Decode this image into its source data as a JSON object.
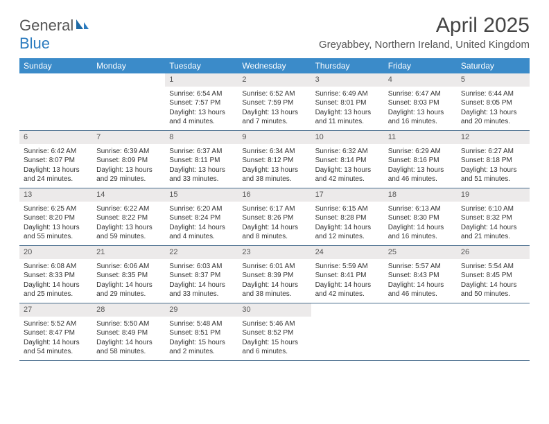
{
  "brand": {
    "part1": "General",
    "part2": "Blue"
  },
  "title": "April 2025",
  "location": "Greyabbey, Northern Ireland, United Kingdom",
  "colors": {
    "header_bg": "#3b8bc9",
    "header_text": "#ffffff",
    "daynum_bg": "#eceaea",
    "row_border": "#44698a",
    "body_text": "#333333",
    "title_text": "#444444"
  },
  "day_headers": [
    "Sunday",
    "Monday",
    "Tuesday",
    "Wednesday",
    "Thursday",
    "Friday",
    "Saturday"
  ],
  "weeks": [
    [
      {
        "empty": true
      },
      {
        "empty": true
      },
      {
        "num": "1",
        "sunrise": "Sunrise: 6:54 AM",
        "sunset": "Sunset: 7:57 PM",
        "daylight": "Daylight: 13 hours and 4 minutes."
      },
      {
        "num": "2",
        "sunrise": "Sunrise: 6:52 AM",
        "sunset": "Sunset: 7:59 PM",
        "daylight": "Daylight: 13 hours and 7 minutes."
      },
      {
        "num": "3",
        "sunrise": "Sunrise: 6:49 AM",
        "sunset": "Sunset: 8:01 PM",
        "daylight": "Daylight: 13 hours and 11 minutes."
      },
      {
        "num": "4",
        "sunrise": "Sunrise: 6:47 AM",
        "sunset": "Sunset: 8:03 PM",
        "daylight": "Daylight: 13 hours and 16 minutes."
      },
      {
        "num": "5",
        "sunrise": "Sunrise: 6:44 AM",
        "sunset": "Sunset: 8:05 PM",
        "daylight": "Daylight: 13 hours and 20 minutes."
      }
    ],
    [
      {
        "num": "6",
        "sunrise": "Sunrise: 6:42 AM",
        "sunset": "Sunset: 8:07 PM",
        "daylight": "Daylight: 13 hours and 24 minutes."
      },
      {
        "num": "7",
        "sunrise": "Sunrise: 6:39 AM",
        "sunset": "Sunset: 8:09 PM",
        "daylight": "Daylight: 13 hours and 29 minutes."
      },
      {
        "num": "8",
        "sunrise": "Sunrise: 6:37 AM",
        "sunset": "Sunset: 8:11 PM",
        "daylight": "Daylight: 13 hours and 33 minutes."
      },
      {
        "num": "9",
        "sunrise": "Sunrise: 6:34 AM",
        "sunset": "Sunset: 8:12 PM",
        "daylight": "Daylight: 13 hours and 38 minutes."
      },
      {
        "num": "10",
        "sunrise": "Sunrise: 6:32 AM",
        "sunset": "Sunset: 8:14 PM",
        "daylight": "Daylight: 13 hours and 42 minutes."
      },
      {
        "num": "11",
        "sunrise": "Sunrise: 6:29 AM",
        "sunset": "Sunset: 8:16 PM",
        "daylight": "Daylight: 13 hours and 46 minutes."
      },
      {
        "num": "12",
        "sunrise": "Sunrise: 6:27 AM",
        "sunset": "Sunset: 8:18 PM",
        "daylight": "Daylight: 13 hours and 51 minutes."
      }
    ],
    [
      {
        "num": "13",
        "sunrise": "Sunrise: 6:25 AM",
        "sunset": "Sunset: 8:20 PM",
        "daylight": "Daylight: 13 hours and 55 minutes."
      },
      {
        "num": "14",
        "sunrise": "Sunrise: 6:22 AM",
        "sunset": "Sunset: 8:22 PM",
        "daylight": "Daylight: 13 hours and 59 minutes."
      },
      {
        "num": "15",
        "sunrise": "Sunrise: 6:20 AM",
        "sunset": "Sunset: 8:24 PM",
        "daylight": "Daylight: 14 hours and 4 minutes."
      },
      {
        "num": "16",
        "sunrise": "Sunrise: 6:17 AM",
        "sunset": "Sunset: 8:26 PM",
        "daylight": "Daylight: 14 hours and 8 minutes."
      },
      {
        "num": "17",
        "sunrise": "Sunrise: 6:15 AM",
        "sunset": "Sunset: 8:28 PM",
        "daylight": "Daylight: 14 hours and 12 minutes."
      },
      {
        "num": "18",
        "sunrise": "Sunrise: 6:13 AM",
        "sunset": "Sunset: 8:30 PM",
        "daylight": "Daylight: 14 hours and 16 minutes."
      },
      {
        "num": "19",
        "sunrise": "Sunrise: 6:10 AM",
        "sunset": "Sunset: 8:32 PM",
        "daylight": "Daylight: 14 hours and 21 minutes."
      }
    ],
    [
      {
        "num": "20",
        "sunrise": "Sunrise: 6:08 AM",
        "sunset": "Sunset: 8:33 PM",
        "daylight": "Daylight: 14 hours and 25 minutes."
      },
      {
        "num": "21",
        "sunrise": "Sunrise: 6:06 AM",
        "sunset": "Sunset: 8:35 PM",
        "daylight": "Daylight: 14 hours and 29 minutes."
      },
      {
        "num": "22",
        "sunrise": "Sunrise: 6:03 AM",
        "sunset": "Sunset: 8:37 PM",
        "daylight": "Daylight: 14 hours and 33 minutes."
      },
      {
        "num": "23",
        "sunrise": "Sunrise: 6:01 AM",
        "sunset": "Sunset: 8:39 PM",
        "daylight": "Daylight: 14 hours and 38 minutes."
      },
      {
        "num": "24",
        "sunrise": "Sunrise: 5:59 AM",
        "sunset": "Sunset: 8:41 PM",
        "daylight": "Daylight: 14 hours and 42 minutes."
      },
      {
        "num": "25",
        "sunrise": "Sunrise: 5:57 AM",
        "sunset": "Sunset: 8:43 PM",
        "daylight": "Daylight: 14 hours and 46 minutes."
      },
      {
        "num": "26",
        "sunrise": "Sunrise: 5:54 AM",
        "sunset": "Sunset: 8:45 PM",
        "daylight": "Daylight: 14 hours and 50 minutes."
      }
    ],
    [
      {
        "num": "27",
        "sunrise": "Sunrise: 5:52 AM",
        "sunset": "Sunset: 8:47 PM",
        "daylight": "Daylight: 14 hours and 54 minutes."
      },
      {
        "num": "28",
        "sunrise": "Sunrise: 5:50 AM",
        "sunset": "Sunset: 8:49 PM",
        "daylight": "Daylight: 14 hours and 58 minutes."
      },
      {
        "num": "29",
        "sunrise": "Sunrise: 5:48 AM",
        "sunset": "Sunset: 8:51 PM",
        "daylight": "Daylight: 15 hours and 2 minutes."
      },
      {
        "num": "30",
        "sunrise": "Sunrise: 5:46 AM",
        "sunset": "Sunset: 8:52 PM",
        "daylight": "Daylight: 15 hours and 6 minutes."
      },
      {
        "empty": true
      },
      {
        "empty": true
      },
      {
        "empty": true
      }
    ]
  ]
}
